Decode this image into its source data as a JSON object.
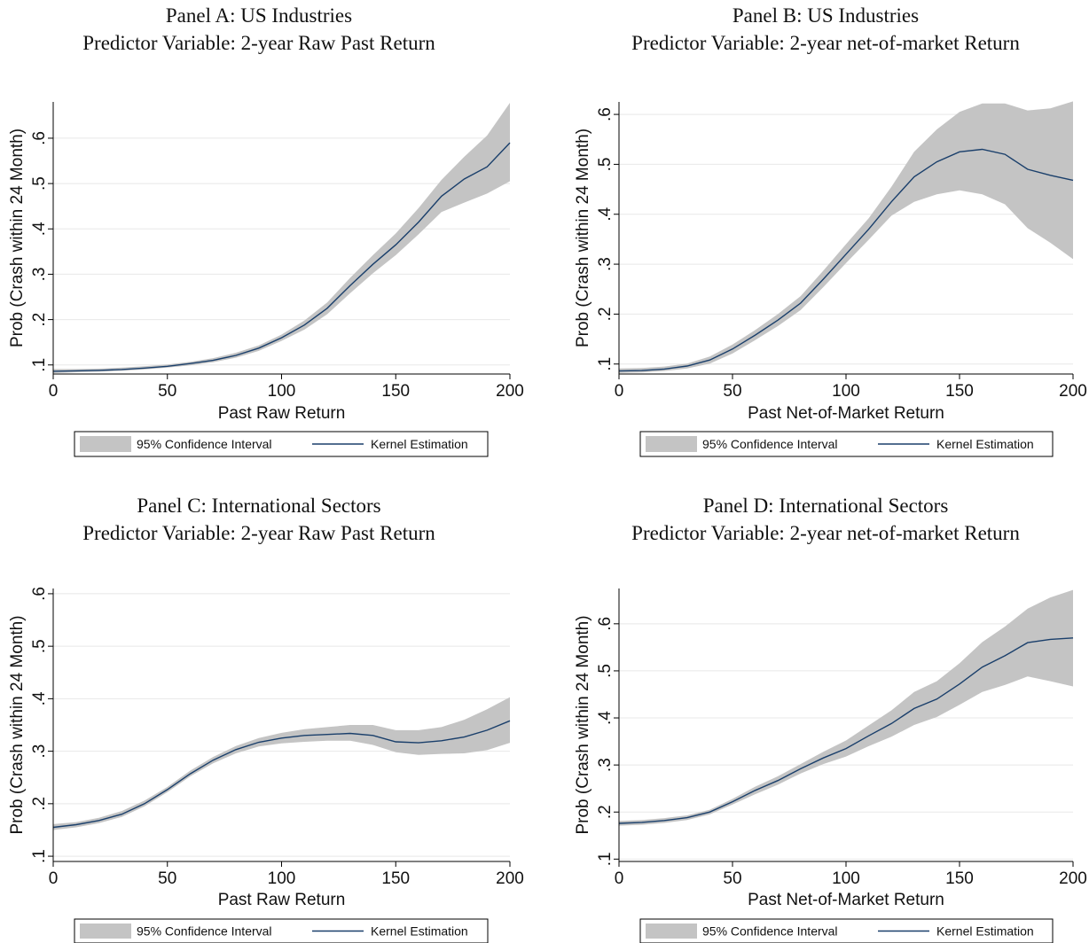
{
  "colors": {
    "band": "#c4c4c4",
    "line": "#1a3f6b",
    "grid": "#e8e8e8",
    "axis": "#000000"
  },
  "chart_data": [
    {
      "type": "line",
      "title": "Panel A: US Industries",
      "subtitle": "Predictor Variable: 2-year Raw Past Return",
      "xlabel": "Past Raw Return",
      "ylabel": "Prob (Crash within 24 Month)",
      "xlim": [
        0,
        200
      ],
      "ylim": [
        0.08,
        0.68
      ],
      "xticks": [
        0,
        50,
        100,
        150,
        200
      ],
      "xtick_labels": [
        "0",
        "50",
        "100",
        "150",
        "200"
      ],
      "yticks": [
        0.1,
        0.2,
        0.3,
        0.4,
        0.5,
        0.6
      ],
      "ytick_labels": [
        ".1",
        ".2",
        ".3",
        ".4",
        ".5",
        ".6"
      ],
      "grid": true,
      "legend": "bottom",
      "legend_labels": [
        "95% Confidence Interval",
        "Kernel Estimation"
      ],
      "x": [
        0,
        10,
        20,
        30,
        40,
        50,
        60,
        70,
        80,
        90,
        100,
        110,
        120,
        130,
        140,
        150,
        160,
        170,
        180,
        190,
        200
      ],
      "series": [
        {
          "name": "Kernel Estimation",
          "values": [
            0.086,
            0.087,
            0.088,
            0.09,
            0.093,
            0.097,
            0.103,
            0.11,
            0.121,
            0.137,
            0.16,
            0.188,
            0.225,
            0.275,
            0.322,
            0.365,
            0.415,
            0.472,
            0.51,
            0.537,
            0.59
          ]
        },
        {
          "name": "95% Confidence Interval",
          "lower": [
            0.082,
            0.084,
            0.085,
            0.087,
            0.09,
            0.094,
            0.099,
            0.106,
            0.116,
            0.131,
            0.153,
            0.178,
            0.212,
            0.258,
            0.302,
            0.342,
            0.388,
            0.437,
            0.458,
            0.478,
            0.505
          ],
          "upper": [
            0.091,
            0.091,
            0.092,
            0.094,
            0.097,
            0.101,
            0.107,
            0.115,
            0.127,
            0.143,
            0.167,
            0.198,
            0.238,
            0.292,
            0.342,
            0.39,
            0.446,
            0.508,
            0.559,
            0.606,
            0.678
          ]
        }
      ]
    },
    {
      "type": "line",
      "title": "Panel B: US Industries",
      "subtitle": "Predictor Variable: 2-year net-of-market Return",
      "xlabel": "Past Net-of-Market Return",
      "ylabel": "Prob (Crash within 24 Month)",
      "xlim": [
        0,
        200
      ],
      "ylim": [
        0.08,
        0.625
      ],
      "xticks": [
        0,
        50,
        100,
        150,
        200
      ],
      "xtick_labels": [
        "0",
        "50",
        "100",
        "150",
        "200"
      ],
      "yticks": [
        0.1,
        0.2,
        0.3,
        0.4,
        0.5,
        0.6
      ],
      "ytick_labels": [
        ".1",
        ".2",
        ".3",
        ".4",
        ".5",
        ".6"
      ],
      "grid": true,
      "legend": "bottom",
      "legend_labels": [
        "95% Confidence Interval",
        "Kernel Estimation"
      ],
      "x": [
        0,
        10,
        20,
        30,
        40,
        50,
        60,
        70,
        80,
        90,
        100,
        110,
        120,
        130,
        140,
        150,
        160,
        170,
        180,
        190,
        200
      ],
      "series": [
        {
          "name": "Kernel Estimation",
          "values": [
            0.086,
            0.087,
            0.09,
            0.096,
            0.108,
            0.13,
            0.158,
            0.188,
            0.222,
            0.27,
            0.32,
            0.37,
            0.425,
            0.475,
            0.505,
            0.525,
            0.53,
            0.52,
            0.49,
            0.478,
            0.468
          ]
        },
        {
          "name": "95% Confidence Interval",
          "lower": [
            0.082,
            0.083,
            0.086,
            0.091,
            0.101,
            0.121,
            0.148,
            0.176,
            0.208,
            0.254,
            0.302,
            0.349,
            0.397,
            0.425,
            0.44,
            0.448,
            0.44,
            0.42,
            0.372,
            0.343,
            0.31
          ],
          "upper": [
            0.091,
            0.092,
            0.095,
            0.101,
            0.115,
            0.139,
            0.168,
            0.2,
            0.236,
            0.287,
            0.34,
            0.392,
            0.455,
            0.525,
            0.57,
            0.605,
            0.622,
            0.622,
            0.608,
            0.612,
            0.626
          ]
        }
      ]
    },
    {
      "type": "line",
      "title": "Panel C: International Sectors",
      "subtitle": "Predictor Variable: 2-year Raw Past Return",
      "xlabel": "Past Raw Return",
      "ylabel": "Prob (Crash within 24 Month)",
      "xlim": [
        0,
        200
      ],
      "ylim": [
        0.09,
        0.61
      ],
      "xticks": [
        0,
        50,
        100,
        150,
        200
      ],
      "xtick_labels": [
        "0",
        "50",
        "100",
        "150",
        "200"
      ],
      "yticks": [
        0.1,
        0.2,
        0.3,
        0.4,
        0.5,
        0.6
      ],
      "ytick_labels": [
        ".1",
        ".2",
        ".3",
        ".4",
        ".5",
        ".6"
      ],
      "grid": true,
      "legend": "bottom",
      "legend_labels": [
        "95% Confidence Interval",
        "Kernel Estimation"
      ],
      "x": [
        0,
        10,
        20,
        30,
        40,
        50,
        60,
        70,
        80,
        90,
        100,
        110,
        120,
        130,
        140,
        150,
        160,
        170,
        180,
        190,
        200
      ],
      "series": [
        {
          "name": "Kernel Estimation",
          "values": [
            0.155,
            0.16,
            0.168,
            0.18,
            0.2,
            0.227,
            0.257,
            0.283,
            0.303,
            0.317,
            0.325,
            0.33,
            0.332,
            0.334,
            0.33,
            0.318,
            0.316,
            0.32,
            0.327,
            0.34,
            0.358
          ]
        },
        {
          "name": "95% Confidence Interval",
          "lower": [
            0.15,
            0.155,
            0.163,
            0.175,
            0.195,
            0.222,
            0.252,
            0.277,
            0.296,
            0.309,
            0.315,
            0.318,
            0.32,
            0.32,
            0.312,
            0.298,
            0.293,
            0.295,
            0.296,
            0.302,
            0.316
          ],
          "upper": [
            0.161,
            0.165,
            0.173,
            0.186,
            0.206,
            0.232,
            0.263,
            0.289,
            0.31,
            0.325,
            0.335,
            0.342,
            0.346,
            0.35,
            0.35,
            0.34,
            0.34,
            0.346,
            0.36,
            0.38,
            0.403
          ]
        }
      ]
    },
    {
      "type": "line",
      "title": "Panel D: International Sectors",
      "subtitle": "Predictor Variable: 2-year net-of-market Return",
      "xlabel": "Past Net-of-Market Return",
      "ylabel": "Prob (Crash within 24 Month)",
      "xlim": [
        0,
        200
      ],
      "ylim": [
        0.095,
        0.675
      ],
      "xticks": [
        0,
        50,
        100,
        150,
        200
      ],
      "xtick_labels": [
        "0",
        "50",
        "100",
        "150",
        "200"
      ],
      "yticks": [
        0.1,
        0.2,
        0.3,
        0.4,
        0.5,
        0.6
      ],
      "ytick_labels": [
        ".1",
        ".2",
        ".3",
        ".4",
        ".5",
        ".6"
      ],
      "grid": true,
      "legend": "bottom",
      "legend_labels": [
        "95% Confidence Interval",
        "Kernel Estimation"
      ],
      "x": [
        0,
        10,
        20,
        30,
        40,
        50,
        60,
        70,
        80,
        90,
        100,
        110,
        120,
        130,
        140,
        150,
        160,
        170,
        180,
        190,
        200
      ],
      "series": [
        {
          "name": "Kernel Estimation",
          "values": [
            0.176,
            0.178,
            0.182,
            0.188,
            0.2,
            0.222,
            0.246,
            0.267,
            0.292,
            0.315,
            0.335,
            0.362,
            0.388,
            0.42,
            0.44,
            0.472,
            0.508,
            0.532,
            0.56,
            0.567,
            0.57
          ]
        },
        {
          "name": "95% Confidence Interval",
          "lower": [
            0.171,
            0.173,
            0.177,
            0.183,
            0.195,
            0.216,
            0.238,
            0.258,
            0.282,
            0.302,
            0.318,
            0.34,
            0.36,
            0.385,
            0.402,
            0.428,
            0.455,
            0.47,
            0.488,
            0.478,
            0.467
          ],
          "upper": [
            0.181,
            0.183,
            0.187,
            0.193,
            0.205,
            0.228,
            0.254,
            0.276,
            0.302,
            0.328,
            0.352,
            0.384,
            0.416,
            0.455,
            0.478,
            0.516,
            0.561,
            0.594,
            0.632,
            0.656,
            0.672
          ]
        }
      ]
    }
  ]
}
